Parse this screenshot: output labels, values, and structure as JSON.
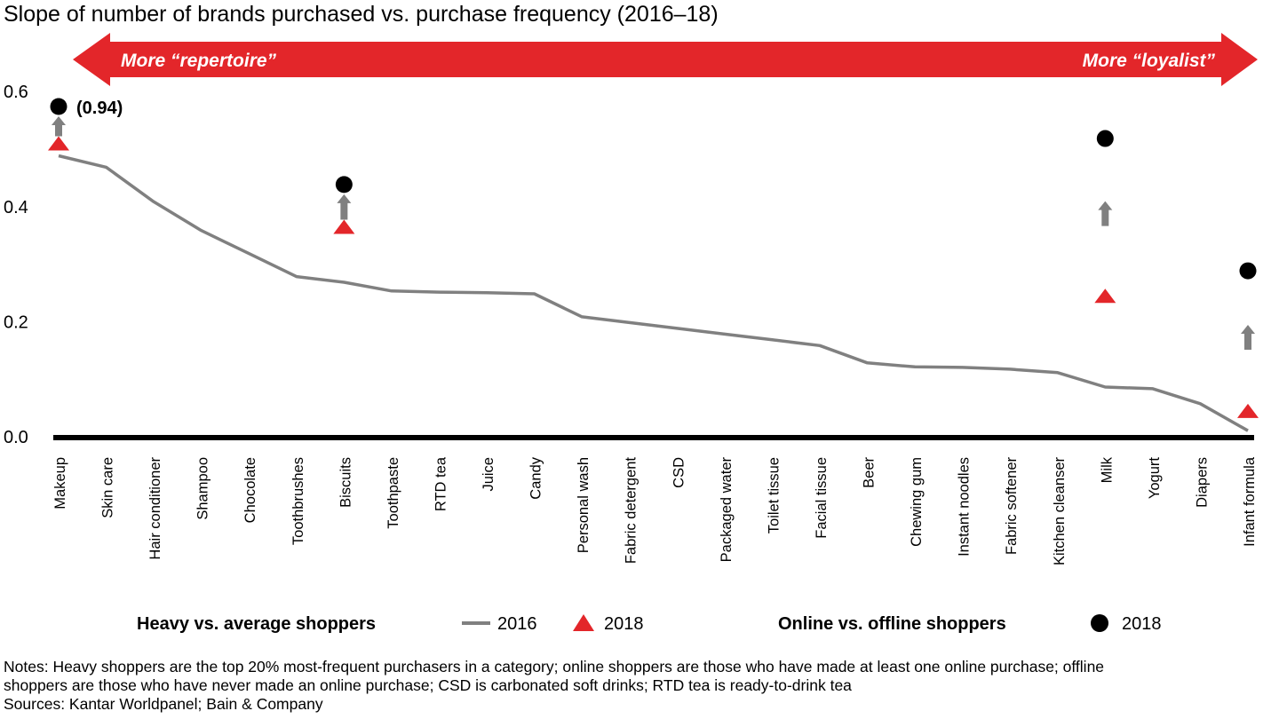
{
  "chart_data": {
    "type": "line",
    "title": "Slope of number of brands purchased vs. purchase frequency (2016–18)",
    "xlabel": "",
    "ylabel": "",
    "ylim": [
      0,
      0.6
    ],
    "yticks": [
      "0.0",
      "0.2",
      "0.4",
      "0.6"
    ],
    "ytick_values": [
      0,
      0.2,
      0.4,
      0.6
    ],
    "grid": false,
    "direction_arrow": {
      "left_label": "More “repertoire”",
      "right_label": "More “loyalist”",
      "color": "#e3262a"
    },
    "categories": [
      "Makeup",
      "Skin care",
      "Hair conditioner",
      "Shampoo",
      "Chocolate",
      "Toothbrushes",
      "Biscuits",
      "Toothpaste",
      "RTD tea",
      "Juice",
      "Candy",
      "Personal wash",
      "Fabric detergent",
      "CSD",
      "Packaged water",
      "Toilet tissue",
      "Facial tissue",
      "Beer",
      "Chewing gum",
      "Instant noodles",
      "Fabric softener",
      "Kitchen cleanser",
      "Milk",
      "Yogurt",
      "Diapers",
      "Infant formula"
    ],
    "series": [
      {
        "name": "Heavy vs. average shoppers 2016",
        "kind": "line",
        "color": "#808080",
        "values": [
          0.49,
          0.47,
          0.41,
          0.36,
          0.32,
          0.28,
          0.27,
          0.255,
          0.253,
          0.252,
          0.25,
          0.21,
          0.2,
          0.19,
          0.18,
          0.17,
          0.16,
          0.13,
          0.123,
          0.122,
          0.119,
          0.113,
          0.088,
          0.085,
          0.059,
          0.012
        ]
      },
      {
        "name": "Heavy vs. average shoppers 2018",
        "kind": "triangle",
        "color": "#e3262a",
        "points": [
          {
            "category": "Makeup",
            "value": 0.51
          },
          {
            "category": "Biscuits",
            "value": 0.365
          },
          {
            "category": "Milk",
            "value": 0.245
          },
          {
            "category": "Infant formula",
            "value": 0.045
          }
        ]
      },
      {
        "name": "Online vs. offline shoppers 2018",
        "kind": "circle",
        "color": "#000000",
        "points": [
          {
            "category": "Makeup",
            "value": 0.94,
            "label": "(0.94)",
            "off_scale": true
          },
          {
            "category": "Biscuits",
            "value": 0.44
          },
          {
            "category": "Milk",
            "value": 0.52
          },
          {
            "category": "Infant formula",
            "value": 0.29
          }
        ]
      }
    ],
    "change_arrows": [
      "Makeup",
      "Biscuits",
      "Milk",
      "Infant formula"
    ],
    "legend": {
      "placement": "bottom",
      "group1_title": "Heavy vs. average shoppers",
      "group1_line_label": "2016",
      "group1_triangle_label": "2018",
      "group2_title": "Online vs. offline shoppers",
      "group2_circle_label": "2018"
    }
  },
  "notes": {
    "line1": "Notes: Heavy shoppers are the top 20% most-frequent purchasers in a category; online shoppers are those who have made at least one online purchase; offline",
    "line2": "shoppers are those who have never made an online purchase; CSD is carbonated soft drinks; RTD tea is ready-to-drink tea",
    "sources": "Sources: Kantar Worldpanel; Bain & Company"
  }
}
